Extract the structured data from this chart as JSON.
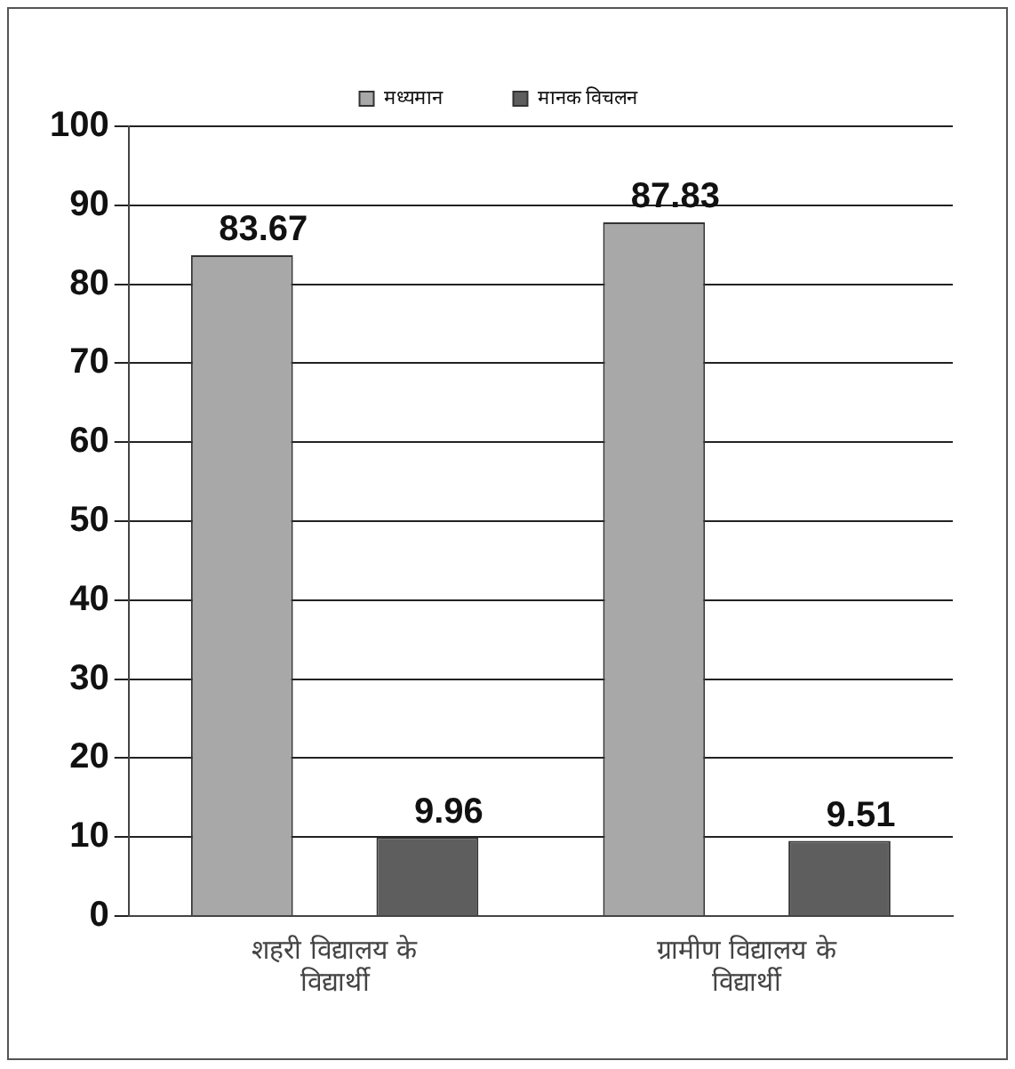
{
  "chart_data": {
    "type": "bar",
    "categories": [
      "शहरी विद्यालय के विद्यार्थी",
      "ग्रामीण विद्यालय के विद्यार्थी"
    ],
    "series": [
      {
        "name": "मध्यमान",
        "color": "#a8a8a8",
        "values": [
          83.67,
          87.83
        ]
      },
      {
        "name": "मानक विचलन",
        "color": "#5e5e5e",
        "values": [
          9.96,
          9.51
        ]
      }
    ],
    "ylim": [
      0,
      100
    ],
    "yticks": [
      0,
      10,
      20,
      30,
      40,
      50,
      60,
      70,
      80,
      90,
      100
    ],
    "grid": "y",
    "legend": "top",
    "data_labels": true
  }
}
